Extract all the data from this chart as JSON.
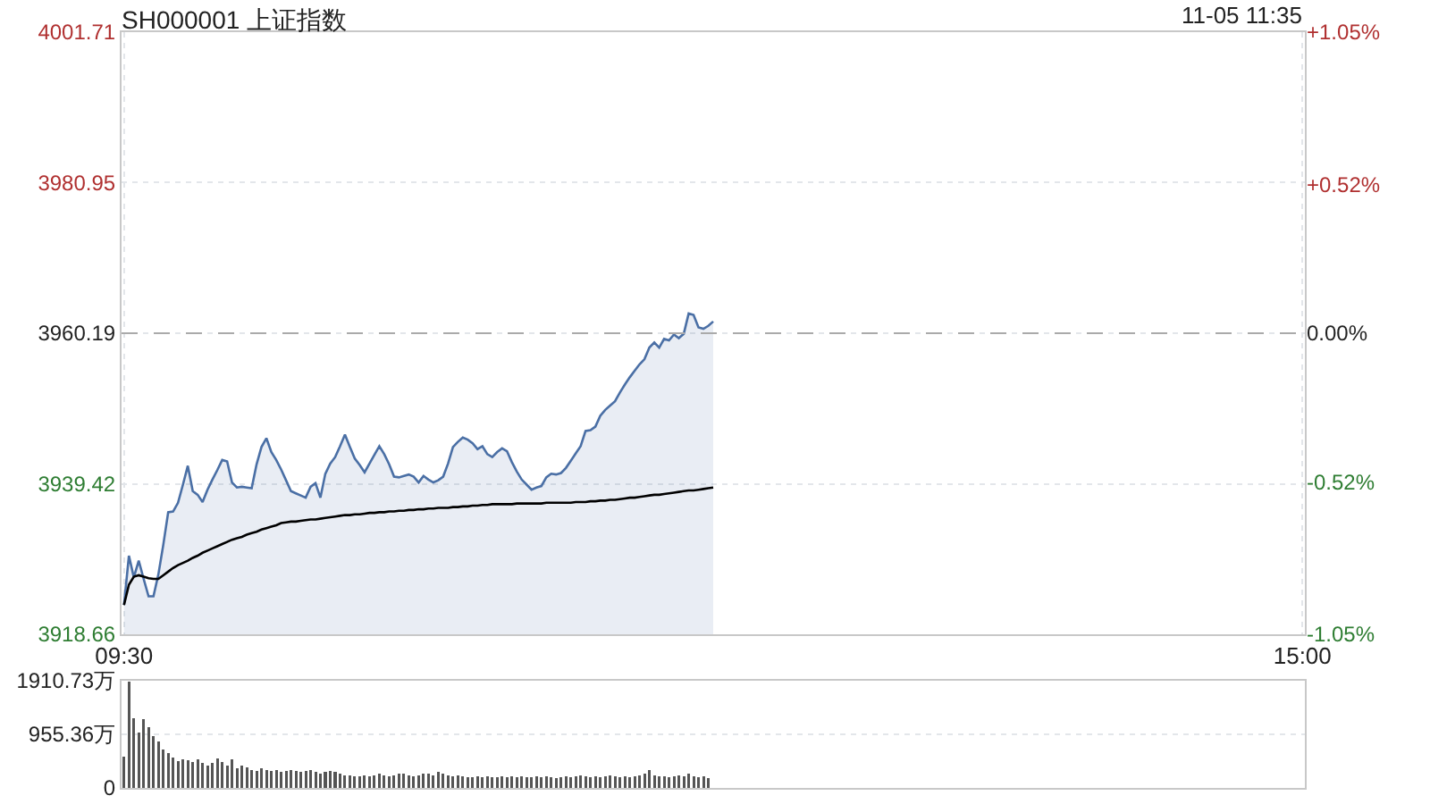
{
  "chart_data": [
    {
      "type": "area",
      "title": "SH000001 上证指数",
      "annotations": [
        "11-05 11:35"
      ],
      "categories": [
        "09:30",
        null,
        null,
        null,
        null,
        null,
        null,
        null,
        null,
        null,
        null,
        null,
        null,
        null,
        null,
        null,
        null,
        null,
        null,
        null,
        null,
        null,
        null,
        null,
        null,
        null,
        null,
        null,
        null,
        null,
        null,
        null,
        null,
        null,
        null,
        null,
        null,
        null,
        null,
        null,
        null,
        null,
        null,
        null,
        null,
        null,
        null,
        null,
        null,
        null,
        null,
        null,
        null,
        null,
        null,
        null,
        null,
        null,
        null,
        null,
        null,
        null,
        null,
        null,
        null,
        null,
        null,
        null,
        null,
        null,
        null,
        null,
        null,
        null,
        null,
        null,
        null,
        null,
        null,
        null,
        null,
        null,
        null,
        null,
        null,
        null,
        null,
        null,
        null,
        null,
        null,
        null,
        null,
        null,
        null,
        null,
        null,
        null,
        null,
        null,
        null,
        null,
        null,
        null,
        null,
        null,
        null,
        null,
        null,
        null,
        null,
        null,
        null,
        null,
        null,
        null,
        null,
        null,
        null,
        null,
        null,
        null,
        null,
        null,
        null,
        null,
        null,
        null,
        null,
        null,
        null,
        null,
        null,
        null,
        null,
        null,
        null,
        null,
        null,
        null,
        null,
        null,
        null,
        null,
        null,
        null,
        null,
        null,
        null,
        null,
        null,
        null,
        null,
        null,
        null,
        null,
        null,
        null,
        null,
        null,
        null,
        null,
        null,
        null,
        null,
        null,
        null,
        null,
        null,
        null,
        null,
        null,
        null,
        null,
        null,
        null,
        null,
        null,
        null,
        null,
        null,
        null,
        null,
        null,
        null,
        null,
        null,
        null,
        null,
        null,
        null,
        null,
        null,
        null,
        null,
        null,
        null,
        null,
        null,
        null,
        null,
        null,
        null,
        null,
        null,
        null,
        null,
        null,
        null,
        null,
        null,
        null,
        null,
        null,
        null,
        null,
        null,
        null,
        null,
        null,
        null,
        null,
        null,
        null,
        null,
        null,
        null,
        null,
        null,
        null,
        null,
        null,
        null,
        null,
        null,
        null,
        null,
        null,
        null,
        null,
        "15:00"
      ],
      "ylim": [
        3918.66,
        4001.71
      ],
      "yticks": [
        3918.66,
        3939.42,
        3960.19,
        3980.95,
        4001.71
      ],
      "y2lim": [
        -1.05,
        1.05
      ],
      "y2ticks": [
        {
          "value": -1.05,
          "label": "-1.05%"
        },
        {
          "value": -0.52,
          "label": "-0.52%"
        },
        {
          "value": 0,
          "label": "0.00%"
        },
        {
          "value": 0.52,
          "label": "+0.52%"
        },
        {
          "value": 1.05,
          "label": "+1.05%"
        }
      ],
      "grid": true,
      "marker": "none",
      "line_style": "solid",
      "ref_lines": [
        {
          "axis": "y",
          "value": 3960.19,
          "color": "#aaaaaa",
          "line_style": "dashed"
        }
      ],
      "series": [
        {
          "color": "#4a6fa5",
          "values": [
            3922.7,
            3929.5,
            3926.5,
            3928.8,
            3926.3,
            3923.9,
            3923.9,
            3926.9,
            3931.0,
            3935.5,
            3935.6,
            3936.8,
            3939.3,
            3941.9,
            3938.4,
            3937.9,
            3936.9,
            3938.6,
            3940.0,
            3941.3,
            3942.7,
            3942.5,
            3939.6,
            3938.9,
            3939.0,
            3938.9,
            3938.8,
            3942.1,
            3944.5,
            3945.7,
            3943.8,
            3942.7,
            3941.4,
            3939.9,
            3938.4,
            3938.1,
            3937.8,
            3937.5,
            3939.0,
            3939.5,
            3937.5,
            3940.8,
            3942.2,
            3943.1,
            3944.6,
            3946.2,
            3944.5,
            3942.9,
            3942.0,
            3941.0,
            3942.2,
            3943.4,
            3944.6,
            3943.5,
            3942.1,
            3940.4,
            3940.3,
            3940.5,
            3940.7,
            3940.4,
            3939.6,
            3940.5,
            3940.0,
            3939.6,
            3939.9,
            3940.4,
            3942.2,
            3944.5,
            3945.2,
            3945.8,
            3945.5,
            3945.0,
            3944.2,
            3944.6,
            3943.5,
            3943.1,
            3943.8,
            3944.3,
            3943.9,
            3942.4,
            3941.1,
            3940.0,
            3939.3,
            3938.6,
            3938.9,
            3939.1,
            3940.3,
            3940.8,
            3940.7,
            3940.9,
            3941.6,
            3942.6,
            3943.6,
            3944.6,
            3946.7,
            3946.8,
            3947.3,
            3948.8,
            3949.6,
            3950.2,
            3950.8,
            3952.0,
            3953.1,
            3954.1,
            3955.0,
            3955.9,
            3956.6,
            3958.2,
            3958.9,
            3958.2,
            3959.4,
            3959.2,
            3960.0,
            3959.5,
            3960.1,
            3962.9,
            3962.7,
            3961.0,
            3960.8,
            3961.2,
            3961.8,
            null,
            null,
            null,
            null,
            null,
            null,
            null,
            null,
            null,
            null,
            null,
            null,
            null,
            null,
            null,
            null,
            null,
            null,
            null,
            null,
            null,
            null,
            null,
            null,
            null,
            null,
            null,
            null,
            null,
            null,
            null,
            null,
            null,
            null,
            null,
            null,
            null,
            null,
            null,
            null,
            null,
            null,
            null,
            null,
            null,
            null,
            null,
            null,
            null,
            null,
            null,
            null,
            null,
            null,
            null,
            null,
            null,
            null,
            null,
            null,
            null,
            null,
            null,
            null,
            null,
            null,
            null,
            null,
            null,
            null,
            null,
            null,
            null,
            null,
            null,
            null,
            null,
            null,
            null,
            null,
            null,
            null,
            null,
            null,
            null,
            null,
            null,
            null,
            null,
            null,
            null,
            null,
            null,
            null,
            null,
            null,
            null,
            null,
            null,
            null,
            null,
            null,
            null,
            null,
            null,
            null,
            null,
            null,
            null,
            null,
            null,
            null,
            null,
            null,
            null,
            null,
            null,
            null,
            null,
            null
          ]
        },
        {
          "type": "line",
          "color": "#000000",
          "values": [
            3922.7,
            3925.5,
            3926.6,
            3926.8,
            3926.6,
            3926.4,
            3926.3,
            3926.3,
            3926.8,
            3927.3,
            3927.8,
            3928.2,
            3928.5,
            3928.8,
            3929.2,
            3929.5,
            3929.9,
            3930.2,
            3930.5,
            3930.8,
            3931.1,
            3931.4,
            3931.7,
            3931.9,
            3932.1,
            3932.4,
            3932.6,
            3932.8,
            3933.1,
            3933.3,
            3933.5,
            3933.7,
            3934.0,
            3934.1,
            3934.2,
            3934.2,
            3934.3,
            3934.4,
            3934.5,
            3934.5,
            3934.6,
            3934.7,
            3934.8,
            3934.9,
            3935.0,
            3935.1,
            3935.1,
            3935.2,
            3935.2,
            3935.3,
            3935.4,
            3935.4,
            3935.5,
            3935.5,
            3935.6,
            3935.6,
            3935.7,
            3935.7,
            3935.8,
            3935.8,
            3935.9,
            3935.9,
            3936.0,
            3936.0,
            3936.1,
            3936.1,
            3936.1,
            3936.2,
            3936.2,
            3936.3,
            3936.3,
            3936.4,
            3936.4,
            3936.5,
            3936.5,
            3936.6,
            3936.6,
            3936.6,
            3936.6,
            3936.6,
            3936.7,
            3936.7,
            3936.7,
            3936.7,
            3936.7,
            3936.7,
            3936.8,
            3936.8,
            3936.8,
            3936.8,
            3936.8,
            3936.8,
            3936.9,
            3936.9,
            3936.9,
            3937.0,
            3937.0,
            3937.1,
            3937.1,
            3937.2,
            3937.2,
            3937.3,
            3937.4,
            3937.5,
            3937.5,
            3937.6,
            3937.7,
            3937.8,
            3937.9,
            3937.9,
            3938.0,
            3938.1,
            3938.2,
            3938.3,
            3938.4,
            3938.5,
            3938.5,
            3938.6,
            3938.7,
            3938.8,
            3938.9,
            null,
            null,
            null,
            null,
            null,
            null,
            null,
            null,
            null,
            null,
            null,
            null,
            null,
            null,
            null,
            null,
            null,
            null,
            null,
            null,
            null,
            null,
            null,
            null,
            null,
            null,
            null,
            null,
            null,
            null,
            null,
            null,
            null,
            null,
            null,
            null,
            null,
            null,
            null,
            null,
            null,
            null,
            null,
            null,
            null,
            null,
            null,
            null,
            null,
            null,
            null,
            null,
            null,
            null,
            null,
            null,
            null,
            null,
            null,
            null,
            null,
            null,
            null,
            null,
            null,
            null,
            null,
            null,
            null,
            null,
            null,
            null,
            null,
            null,
            null,
            null,
            null,
            null,
            null,
            null,
            null,
            null,
            null,
            null,
            null,
            null,
            null,
            null,
            null,
            null,
            null,
            null,
            null,
            null,
            null,
            null,
            null,
            null,
            null,
            null,
            null,
            null,
            null,
            null,
            null,
            null,
            null,
            null,
            null,
            null,
            null,
            null,
            null,
            null,
            null,
            null,
            null,
            null,
            null,
            null
          ]
        }
      ]
    },
    {
      "type": "bar",
      "tick_labels": "y",
      "categories": [
        null,
        null,
        null,
        null,
        null,
        null,
        null,
        null,
        null,
        null,
        null,
        null,
        null,
        null,
        null,
        null,
        null,
        null,
        null,
        null,
        null,
        null,
        null,
        null,
        null,
        null,
        null,
        null,
        null,
        null,
        null,
        null,
        null,
        null,
        null,
        null,
        null,
        null,
        null,
        null,
        null,
        null,
        null,
        null,
        null,
        null,
        null,
        null,
        null,
        null,
        null,
        null,
        null,
        null,
        null,
        null,
        null,
        null,
        null,
        null,
        null,
        null,
        null,
        null,
        null,
        null,
        null,
        null,
        null,
        null,
        null,
        null,
        null,
        null,
        null,
        null,
        null,
        null,
        null,
        null,
        null,
        null,
        null,
        null,
        null,
        null,
        null,
        null,
        null,
        null,
        null,
        null,
        null,
        null,
        null,
        null,
        null,
        null,
        null,
        null,
        null,
        null,
        null,
        null,
        null,
        null,
        null,
        null,
        null,
        null,
        null,
        null,
        null,
        null,
        null,
        null,
        null,
        null,
        null,
        null,
        null,
        null,
        null,
        null,
        null,
        null,
        null,
        null,
        null,
        null,
        null,
        null,
        null,
        null,
        null,
        null,
        null,
        null,
        null,
        null,
        null,
        null,
        null,
        null,
        null,
        null,
        null,
        null,
        null,
        null,
        null,
        null,
        null,
        null,
        null,
        null,
        null,
        null,
        null,
        null,
        null,
        null,
        null,
        null,
        null,
        null,
        null,
        null,
        null,
        null,
        null,
        null,
        null,
        null,
        null,
        null,
        null,
        null,
        null,
        null,
        null,
        null,
        null,
        null,
        null,
        null,
        null,
        null,
        null,
        null,
        null,
        null,
        null,
        null,
        null,
        null,
        null,
        null,
        null,
        null,
        null,
        null,
        null,
        null,
        null,
        null,
        null,
        null,
        null,
        null,
        null,
        null,
        null,
        null,
        null,
        null,
        null,
        null,
        null,
        null,
        null,
        null,
        null,
        null,
        null,
        null,
        null,
        null,
        null,
        null,
        null,
        null,
        null,
        null,
        null,
        null,
        null,
        null,
        null,
        null,
        null
      ],
      "ylim": [
        0,
        1910.73
      ],
      "yticks": [
        0,
        {
          "value": 955.36,
          "label": "955.36万"
        },
        {
          "value": 1910.73,
          "label": "1910.73万"
        }
      ],
      "grid": "y",
      "series": [
        {
          "color": "#555555",
          "values": [
            560,
            1900,
            1250,
            990,
            1220,
            1090,
            930,
            830,
            690,
            620,
            540,
            480,
            510,
            490,
            460,
            510,
            440,
            400,
            440,
            530,
            460,
            400,
            510,
            350,
            400,
            370,
            320,
            300,
            350,
            320,
            300,
            320,
            280,
            300,
            320,
            300,
            280,
            300,
            320,
            280,
            260,
            280,
            300,
            280,
            260,
            230,
            230,
            210,
            210,
            230,
            210,
            230,
            260,
            230,
            210,
            230,
            260,
            260,
            230,
            210,
            230,
            260,
            260,
            230,
            280,
            260,
            230,
            210,
            230,
            210,
            190,
            190,
            210,
            190,
            210,
            190,
            190,
            210,
            190,
            210,
            190,
            210,
            190,
            190,
            210,
            190,
            210,
            190,
            170,
            190,
            210,
            190,
            210,
            230,
            210,
            190,
            210,
            190,
            210,
            230,
            210,
            190,
            210,
            190,
            210,
            230,
            260,
            320,
            230,
            210,
            210,
            190,
            210,
            230,
            210,
            260,
            210,
            190,
            210,
            170,
            null,
            null,
            null,
            null,
            null,
            null,
            null,
            null,
            null,
            null,
            null,
            null,
            null,
            null,
            null,
            null,
            null,
            null,
            null,
            null,
            null,
            null,
            null,
            null,
            null,
            null,
            null,
            null,
            null,
            null,
            null,
            null,
            null,
            null,
            null,
            null,
            null,
            null,
            null,
            null,
            null,
            null,
            null,
            null,
            null,
            null,
            null,
            null,
            null,
            null,
            null,
            null,
            null,
            null,
            null,
            null,
            null,
            null,
            null,
            null,
            null,
            null,
            null,
            null,
            null,
            null,
            null,
            null,
            null,
            null,
            null,
            null,
            null,
            null,
            null,
            null,
            null,
            null,
            null,
            null,
            null,
            null,
            null,
            null,
            null,
            null,
            null,
            null,
            null,
            null,
            null,
            null,
            null,
            null,
            null,
            null,
            null,
            null,
            null,
            null,
            null,
            null,
            null,
            null,
            null,
            null,
            null,
            null,
            null,
            null,
            null,
            null,
            null,
            null,
            null,
            null,
            null,
            null,
            null,
            null,
            null
          ]
        }
      ]
    }
  ]
}
